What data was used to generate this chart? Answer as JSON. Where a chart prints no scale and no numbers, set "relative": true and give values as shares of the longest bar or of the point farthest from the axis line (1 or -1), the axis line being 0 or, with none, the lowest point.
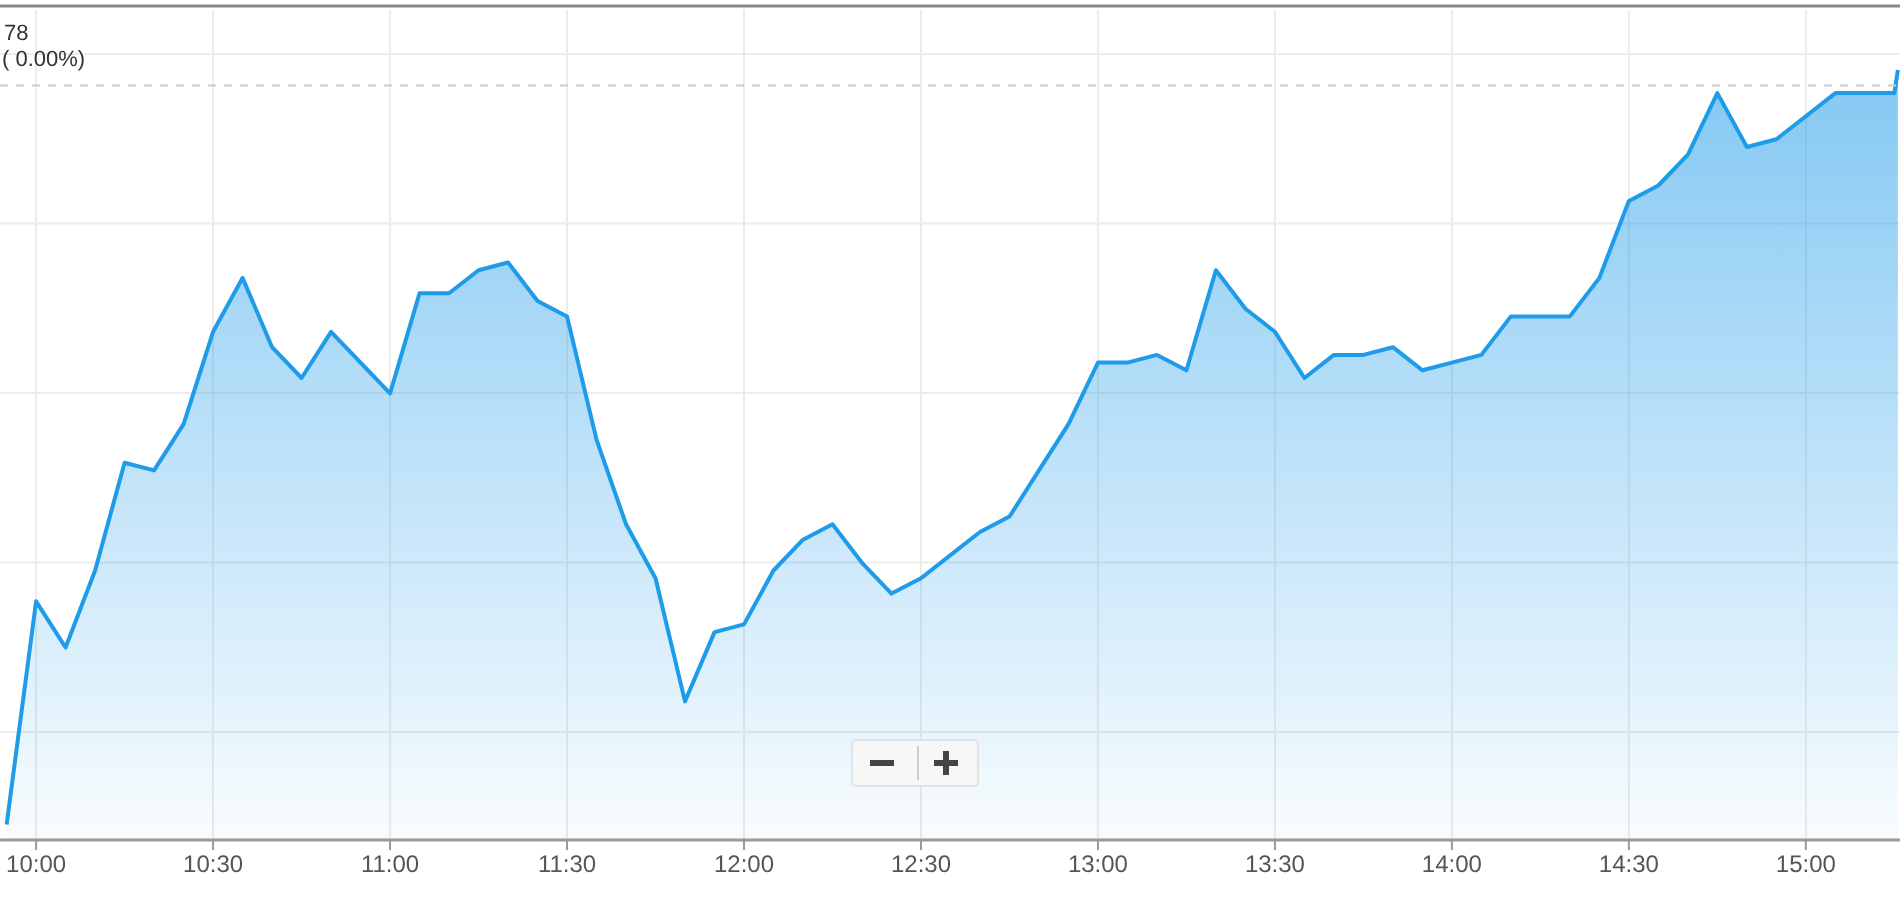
{
  "chart_data": {
    "type": "area",
    "relative": true,
    "grid": true,
    "tick_labels": "x",
    "x": [
      9.9167,
      10,
      10.0833,
      10.1667,
      10.25,
      10.3333,
      10.4167,
      10.5,
      10.5833,
      10.6667,
      10.75,
      10.8333,
      10.9167,
      11,
      11.0833,
      11.1667,
      11.25,
      11.3333,
      11.4167,
      11.5,
      11.5833,
      11.6667,
      11.75,
      11.8333,
      11.9167,
      12,
      12.0833,
      12.1667,
      12.25,
      12.3333,
      12.4167,
      12.5,
      12.5833,
      12.6667,
      12.75,
      12.8333,
      12.9167,
      13,
      13.0833,
      13.1667,
      13.25,
      13.3333,
      13.4167,
      13.5,
      13.5833,
      13.6667,
      13.75,
      13.8333,
      13.9167,
      14,
      14.0833,
      14.1667,
      14.25,
      14.3333,
      14.4167,
      14.5,
      14.5833,
      14.6667,
      14.75,
      14.8333,
      14.9167,
      15,
      15.0833,
      15.1667,
      15.25,
      15.26
    ],
    "series": [
      {
        "color": "#1e9be9",
        "values": [
          0.02,
          0.31,
          0.25,
          0.35,
          0.49,
          0.48,
          0.54,
          0.66,
          0.73,
          0.64,
          0.6,
          0.66,
          0.62,
          0.58,
          0.71,
          0.71,
          0.74,
          0.75,
          0.7,
          0.68,
          0.52,
          0.41,
          0.34,
          0.18,
          0.27,
          0.28,
          0.35,
          0.39,
          0.41,
          0.36,
          0.32,
          0.34,
          0.37,
          0.4,
          0.42,
          0.48,
          0.54,
          0.62,
          0.62,
          0.63,
          0.61,
          0.74,
          0.69,
          0.66,
          0.6,
          0.63,
          0.63,
          0.64,
          0.61,
          0.62,
          0.63,
          0.68,
          0.68,
          0.68,
          0.73,
          0.83,
          0.85,
          0.89,
          0.97,
          0.9,
          0.91,
          0.94,
          0.97,
          0.97,
          0.97,
          1.0
        ]
      }
    ],
    "xlim": [
      9.898,
      15.266
    ],
    "xticks": [
      {
        "value": 10,
        "label": "10:00"
      },
      {
        "value": 10.5,
        "label": "10:30"
      },
      {
        "value": 11,
        "label": "11:00"
      },
      {
        "value": 11.5,
        "label": "11:30"
      },
      {
        "value": 12,
        "label": "12:00"
      },
      {
        "value": 12.5,
        "label": "12:30"
      },
      {
        "value": 13,
        "label": "13:00"
      },
      {
        "value": 13.5,
        "label": "13:30"
      },
      {
        "value": 14,
        "label": "14:00"
      },
      {
        "value": 14.5,
        "label": "14:30"
      },
      {
        "value": 15,
        "label": "15:00"
      }
    ],
    "ref_lines": [
      {
        "axis": "y",
        "value": 0.98,
        "color": "#cccccc",
        "line_style": "dashed"
      }
    ],
    "annotations": [
      "78",
      "( 0.00%)"
    ]
  }
}
